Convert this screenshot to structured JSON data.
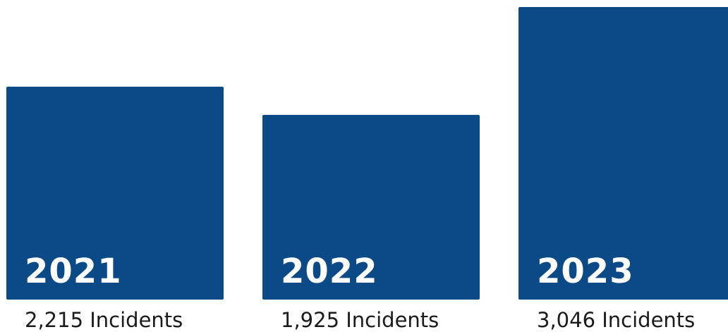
{
  "chart_data": {
    "type": "bar",
    "categories": [
      "2021",
      "2022",
      "2023"
    ],
    "values": [
      2215,
      1925,
      3046
    ],
    "value_labels": [
      "2,215 Incidents",
      "1,925 Incidents",
      "3,046 Incidents"
    ],
    "bar_color": "#0c4a87",
    "title": "",
    "xlabel": "",
    "ylabel": "",
    "grid": false,
    "legend": "none"
  }
}
